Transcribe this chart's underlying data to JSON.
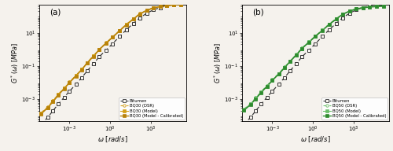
{
  "xlim": [
    6e-06,
    400000.0
  ],
  "ylim": [
    5e-05,
    500.0
  ],
  "xlabel_italic": true,
  "xlabel": "\\omega [rad/s]",
  "ylabel": "G*(\\omega) [MPa]",
  "bitumen_x": [
    8e-06,
    2.5e-05,
    6e-05,
    0.00015,
    0.0004,
    0.001,
    0.003,
    0.008,
    0.02,
    0.06,
    0.15,
    0.5,
    1.5,
    5,
    15,
    50,
    150,
    500,
    1500,
    5000,
    15000,
    50000,
    150000
  ],
  "bitumen_y": [
    3e-05,
    8e-05,
    0.0002,
    0.0005,
    0.0013,
    0.003,
    0.008,
    0.02,
    0.05,
    0.14,
    0.35,
    0.9,
    2.2,
    6,
    15,
    36,
    80,
    150,
    240,
    330,
    420,
    500,
    570
  ],
  "bq30_dsr_x": [
    8e-06,
    2.5e-05,
    6e-05,
    0.00015,
    0.0004,
    0.001,
    0.003,
    0.008,
    0.02,
    0.06,
    0.15,
    0.5,
    1.5,
    5,
    15,
    50,
    150,
    500,
    1500,
    5000,
    15000,
    50000,
    150000
  ],
  "bq30_dsr_y": [
    0.00015,
    0.00035,
    0.0008,
    0.002,
    0.0048,
    0.011,
    0.027,
    0.065,
    0.16,
    0.42,
    1.0,
    2.5,
    5.8,
    14,
    32,
    70,
    140,
    230,
    320,
    390,
    440,
    480,
    510
  ],
  "bq30_model_x": [
    8e-06,
    2.5e-05,
    6e-05,
    0.00015,
    0.0004,
    0.001,
    0.003,
    0.008,
    0.02,
    0.06,
    0.15,
    0.5,
    1.5,
    5,
    15,
    50,
    150,
    500,
    1500,
    5000,
    15000,
    50000,
    150000
  ],
  "bq30_model_y": [
    0.00014,
    0.00032,
    0.00075,
    0.00185,
    0.0045,
    0.0105,
    0.026,
    0.062,
    0.155,
    0.4,
    0.97,
    2.42,
    5.6,
    13.5,
    31,
    68,
    137,
    226,
    316,
    386,
    436,
    476,
    506
  ],
  "bq30_cal_x": [
    8e-06,
    2.5e-05,
    6e-05,
    0.00015,
    0.0004,
    0.001,
    0.003,
    0.008,
    0.02,
    0.06,
    0.15,
    0.5,
    1.5,
    5,
    15,
    50,
    150,
    500,
    1500,
    5000,
    15000,
    50000,
    150000
  ],
  "bq30_cal_y": [
    0.00013,
    0.0003,
    0.00071,
    0.00175,
    0.0043,
    0.01,
    0.025,
    0.06,
    0.15,
    0.385,
    0.94,
    2.35,
    5.4,
    13.1,
    30,
    66,
    134,
    222,
    312,
    382,
    432,
    472,
    502
  ],
  "bq50_dsr_x": [
    8e-06,
    2.5e-05,
    6e-05,
    0.00015,
    0.0004,
    0.001,
    0.003,
    0.008,
    0.02,
    0.06,
    0.15,
    0.5,
    1.5,
    5,
    15,
    50,
    150,
    500,
    1500,
    5000,
    15000,
    50000,
    150000
  ],
  "bq50_dsr_y": [
    0.00025,
    0.00055,
    0.0012,
    0.0028,
    0.0065,
    0.015,
    0.035,
    0.085,
    0.2,
    0.5,
    1.2,
    2.9,
    6.5,
    15,
    33,
    70,
    135,
    210,
    280,
    330,
    365,
    390,
    410
  ],
  "bq50_model_x": [
    8e-06,
    2.5e-05,
    6e-05,
    0.00015,
    0.0004,
    0.001,
    0.003,
    0.008,
    0.02,
    0.06,
    0.15,
    0.5,
    1.5,
    5,
    15,
    50,
    150,
    500,
    1500,
    5000,
    15000,
    50000,
    150000
  ],
  "bq50_model_y": [
    0.00022,
    0.0005,
    0.0011,
    0.0026,
    0.006,
    0.014,
    0.033,
    0.08,
    0.19,
    0.47,
    1.14,
    2.78,
    6.2,
    14.3,
    31.5,
    67,
    130,
    204,
    274,
    324,
    359,
    384,
    404
  ],
  "bq50_cal_x": [
    8e-06,
    2.5e-05,
    6e-05,
    0.00015,
    0.0004,
    0.001,
    0.003,
    0.008,
    0.02,
    0.06,
    0.15,
    0.5,
    1.5,
    5,
    15,
    50,
    150,
    500,
    1500,
    5000,
    15000,
    50000,
    150000
  ],
  "bq50_cal_y": [
    0.00021,
    0.00047,
    0.00105,
    0.0025,
    0.0058,
    0.0135,
    0.032,
    0.078,
    0.185,
    0.46,
    1.11,
    2.72,
    6.1,
    14.0,
    31.0,
    66,
    129,
    202,
    272,
    322,
    357,
    382,
    402
  ],
  "color_bitumen": "#333333",
  "color_bq30_dsr": "#d4a017",
  "color_bq30_model": "#d4a017",
  "color_bq30_cal": "#b8820a",
  "color_bq50_dsr": "#6abf6a",
  "color_bq50_model": "#6abf6a",
  "color_bq50_cal": "#2e8b2e",
  "legend_a": [
    "Bitumen",
    "BQ30 (DSR)",
    "BQ30 (Model)",
    "BQ30 (Model - Calibrated)"
  ],
  "legend_b": [
    "Bitumen",
    "BQ50 (DSR)",
    "BQ50 (Model)",
    "BQ50 (Model - Calibrated)"
  ],
  "label_a": "(a)",
  "label_b": "(b)",
  "bg_color": "#f0ede8"
}
